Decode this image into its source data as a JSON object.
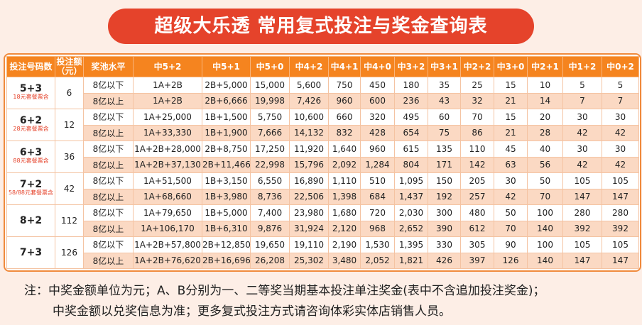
{
  "title": "超级大乐透 常用复式投注与奖金查询表",
  "table": {
    "header": [
      "投注号码数",
      "投注额（元）",
      "奖池水平",
      "中5+2",
      "中5+1",
      "中5+0",
      "中4+2",
      "中4+1",
      "中4+0",
      "中3+2",
      "中3+1",
      "中2+2",
      "中3+0",
      "中2+1",
      "中1+2",
      "中0+2"
    ],
    "groups": [
      {
        "combo": "5+3",
        "note": "18元套餐票含",
        "amount": "6",
        "rows": [
          {
            "pool": "8亿以下",
            "prizes": [
              "1A+2B",
              "2B+5,000",
              "15,000",
              "5,600",
              "750",
              "450",
              "180",
              "35",
              "25",
              "15",
              "10",
              "5",
              "5"
            ]
          },
          {
            "pool": "8亿以上",
            "prizes": [
              "1A+2B",
              "2B+6,666",
              "19,998",
              "7,426",
              "960",
              "600",
              "236",
              "43",
              "32",
              "21",
              "14",
              "7",
              "7"
            ]
          }
        ]
      },
      {
        "combo": "6+2",
        "note": "28元套餐票含",
        "amount": "12",
        "rows": [
          {
            "pool": "8亿以下",
            "prizes": [
              "1A+25,000",
              "1B+1,500",
              "5,750",
              "10,600",
              "660",
              "320",
              "495",
              "60",
              "70",
              "15",
              "20",
              "30",
              "30"
            ]
          },
          {
            "pool": "8亿以上",
            "prizes": [
              "1A+33,330",
              "1B+1,900",
              "7,666",
              "14,132",
              "832",
              "428",
              "654",
              "75",
              "86",
              "21",
              "28",
              "42",
              "42"
            ]
          }
        ]
      },
      {
        "combo": "6+3",
        "note": "88元套餐票含",
        "amount": "36",
        "rows": [
          {
            "pool": "8亿以下",
            "prizes": [
              "1A+2B+28,000",
              "2B+8,750",
              "17,250",
              "11,920",
              "1,640",
              "960",
              "615",
              "135",
              "110",
              "45",
              "40",
              "30",
              "30"
            ]
          },
          {
            "pool": "8亿以上",
            "prizes": [
              "1A+2B+37,130",
              "2B+11,466",
              "22,998",
              "15,796",
              "2,092",
              "1,284",
              "804",
              "171",
              "142",
              "63",
              "56",
              "42",
              "42"
            ]
          }
        ]
      },
      {
        "combo": "7+2",
        "note": "58/88元套餐票含",
        "amount": "42",
        "rows": [
          {
            "pool": "8亿以下",
            "prizes": [
              "1A+51,500",
              "1B+3,150",
              "6,550",
              "16,890",
              "1,110",
              "510",
              "1,095",
              "150",
              "205",
              "30",
              "50",
              "105",
              "105"
            ]
          },
          {
            "pool": "8亿以上",
            "prizes": [
              "1A+68,660",
              "1B+3,980",
              "8,736",
              "22,506",
              "1,398",
              "684",
              "1,437",
              "192",
              "257",
              "42",
              "70",
              "147",
              "147"
            ]
          }
        ]
      },
      {
        "combo": "8+2",
        "amount": "112",
        "rows": [
          {
            "pool": "8亿以下",
            "prizes": [
              "1A+79,650",
              "1B+5,000",
              "7,400",
              "23,980",
              "1,680",
              "720",
              "2,030",
              "300",
              "480",
              "50",
              "100",
              "280",
              "280"
            ]
          },
          {
            "pool": "8亿以上",
            "prizes": [
              "1A+106,170",
              "1B+6,310",
              "9,876",
              "31,924",
              "2,120",
              "968",
              "2,652",
              "390",
              "612",
              "70",
              "140",
              "392",
              "392"
            ]
          }
        ]
      },
      {
        "combo": "7+3",
        "amount": "126",
        "rows": [
          {
            "pool": "8亿以下",
            "prizes": [
              "1A+2B+57,800",
              "2B+12,850",
              "19,650",
              "19,110",
              "2,190",
              "1,530",
              "1,395",
              "330",
              "305",
              "90",
              "100",
              "105",
              "105"
            ]
          },
          {
            "pool": "8亿以上",
            "prizes": [
              "1A+2B+76,620",
              "2B+16,696",
              "26,208",
              "25,302",
              "3,480",
              "2,052",
              "1,821",
              "426",
              "397",
              "126",
              "140",
              "147",
              "147"
            ]
          }
        ]
      }
    ]
  },
  "notes": [
    "注：中奖金额单位为元；A、B分别为一、二等奖当期基本投注单注奖金(表中不含追加投注奖金)；",
    "中奖金额以兑奖信息为准；更多复式投注方式请咨询体彩实体店销售人员。"
  ]
}
